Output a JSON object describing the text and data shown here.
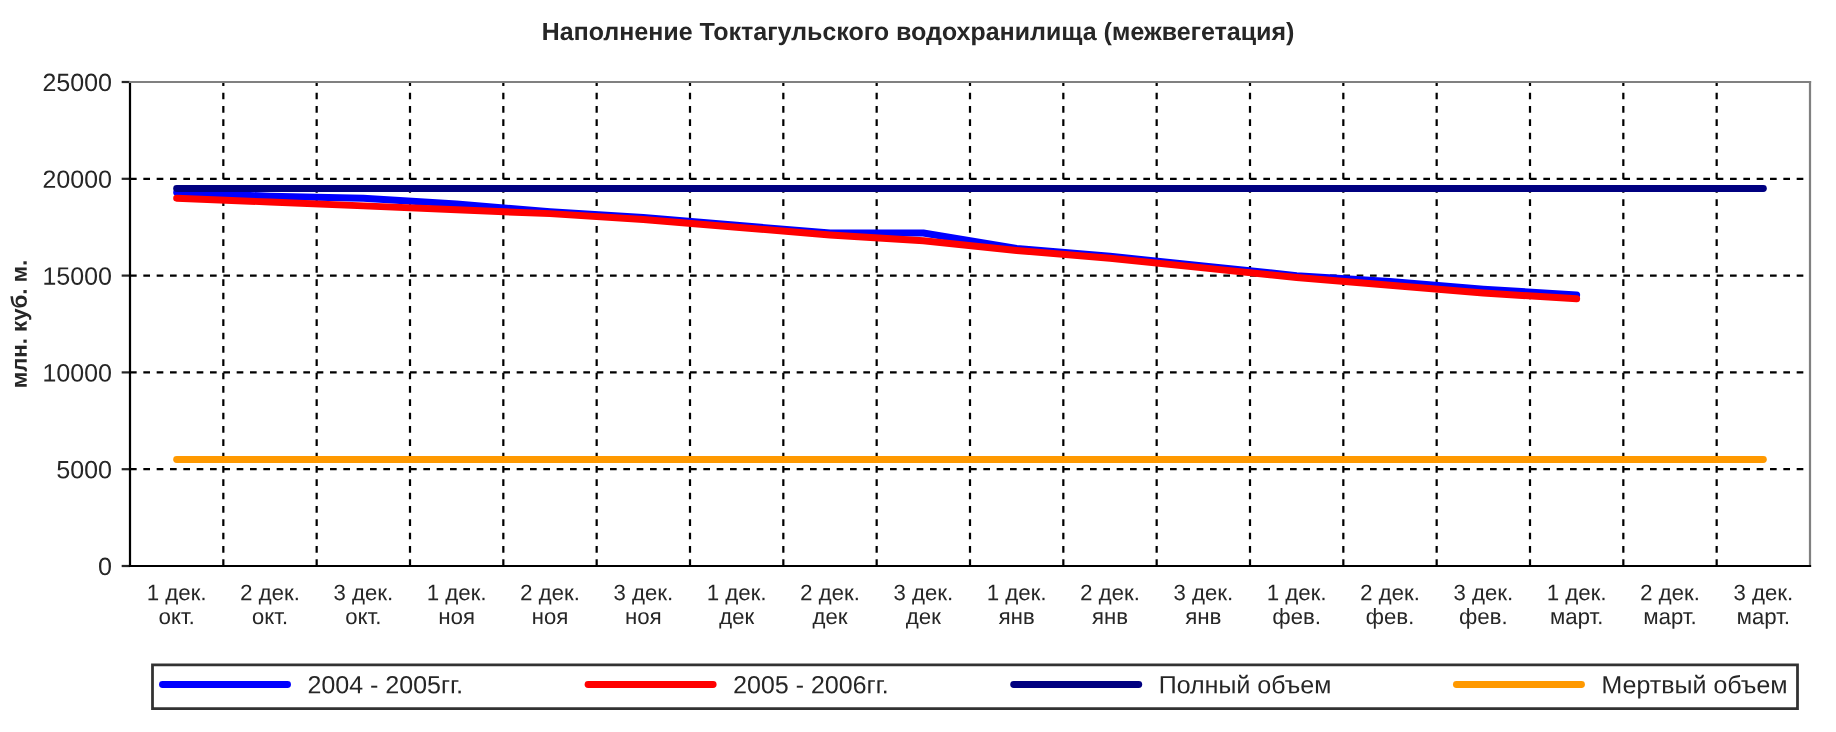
{
  "chart_data": {
    "type": "line",
    "title": "Наполнение Токтагульского водохранилища (межвегетация)",
    "ylabel": "млн. куб. м.",
    "categories": [
      "1 дек.\nокт.",
      "2 дек.\nокт.",
      "3 дек.\nокт.",
      "1 дек.\nноя",
      "2 дек.\nноя",
      "3 дек.\nноя",
      "1 дек.\nдек",
      "2 дек.\nдек",
      "3 дек.\nдек",
      "1 дек.\nянв",
      "2 дек.\nянв",
      "3 дек.\nянв",
      "1 дек.\nфев.",
      "2 дек.\nфев.",
      "3 дек.\nфев.",
      "1 дек.\nмарт.",
      "2 дек.\nмарт.",
      "3 дек.\nмарт."
    ],
    "series": [
      {
        "name": "2004 - 2005гг.",
        "color": "#0000ff",
        "values": [
          19300,
          19100,
          19000,
          18700,
          18300,
          18000,
          17600,
          17200,
          17200,
          16400,
          16000,
          15500,
          15000,
          14700,
          14300,
          14000,
          null,
          null
        ]
      },
      {
        "name": "2005 - 2006гг.",
        "color": "#ff0000",
        "values": [
          19000,
          18800,
          18600,
          18400,
          18200,
          17900,
          17500,
          17100,
          16800,
          16300,
          15900,
          15400,
          14900,
          14500,
          14100,
          13800,
          null,
          null
        ]
      },
      {
        "name": "Полный объем",
        "color": "#000080",
        "values": [
          19500,
          19500,
          19500,
          19500,
          19500,
          19500,
          19500,
          19500,
          19500,
          19500,
          19500,
          19500,
          19500,
          19500,
          19500,
          19500,
          19500,
          19500
        ]
      },
      {
        "name": "Мертвый объем",
        "color": "#ff9900",
        "values": [
          5500,
          5500,
          5500,
          5500,
          5500,
          5500,
          5500,
          5500,
          5500,
          5500,
          5500,
          5500,
          5500,
          5500,
          5500,
          5500,
          5500,
          5500
        ]
      }
    ],
    "ylim": [
      0,
      25000
    ],
    "yticks": [
      0,
      5000,
      10000,
      15000,
      20000,
      25000
    ],
    "grid": true,
    "legend": "bottom",
    "marker": "none",
    "line_style": "solid"
  }
}
